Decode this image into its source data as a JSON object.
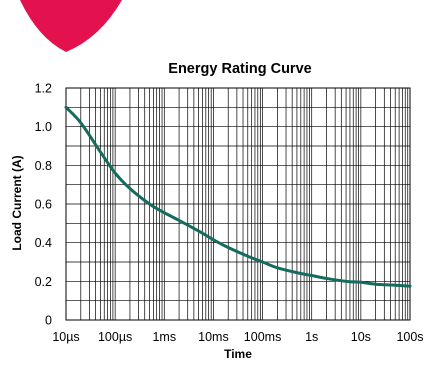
{
  "decor": {
    "logo_color": "#e4114f"
  },
  "chart_data": {
    "type": "line",
    "title": "Energy Rating Curve",
    "xlabel": "Time",
    "ylabel": "Load Current (A)",
    "x_scale": "log",
    "x_unit": "s",
    "xlim": [
      1e-05,
      100
    ],
    "ylim": [
      0,
      1.2
    ],
    "grid": true,
    "legend": "none",
    "x_ticks": [
      {
        "value": 1e-05,
        "label": "10µs"
      },
      {
        "value": 0.0001,
        "label": "100µs"
      },
      {
        "value": 0.001,
        "label": "1ms"
      },
      {
        "value": 0.01,
        "label": "10ms"
      },
      {
        "value": 0.1,
        "label": "100ms"
      },
      {
        "value": 1,
        "label": "1s"
      },
      {
        "value": 10,
        "label": "10s"
      },
      {
        "value": 100,
        "label": "100s"
      }
    ],
    "y_ticks": [
      {
        "value": 0,
        "label": "0"
      },
      {
        "value": 0.2,
        "label": "0.2"
      },
      {
        "value": 0.4,
        "label": "0.4"
      },
      {
        "value": 0.6,
        "label": "0.6"
      },
      {
        "value": 0.8,
        "label": "0.8"
      },
      {
        "value": 1.0,
        "label": "1.0"
      },
      {
        "value": 1.2,
        "label": "1.2"
      }
    ],
    "series": [
      {
        "color": "#146b5e",
        "points": [
          {
            "x": 1e-05,
            "y": 1.1
          },
          {
            "x": 2e-05,
            "y": 1.02
          },
          {
            "x": 5e-05,
            "y": 0.87
          },
          {
            "x": 0.0001,
            "y": 0.76
          },
          {
            "x": 0.0002,
            "y": 0.68
          },
          {
            "x": 0.0005,
            "y": 0.6
          },
          {
            "x": 0.001,
            "y": 0.555
          },
          {
            "x": 0.002,
            "y": 0.515
          },
          {
            "x": 0.005,
            "y": 0.46
          },
          {
            "x": 0.01,
            "y": 0.415
          },
          {
            "x": 0.02,
            "y": 0.375
          },
          {
            "x": 0.05,
            "y": 0.33
          },
          {
            "x": 0.1,
            "y": 0.3
          },
          {
            "x": 0.2,
            "y": 0.27
          },
          {
            "x": 0.5,
            "y": 0.245
          },
          {
            "x": 1,
            "y": 0.23
          },
          {
            "x": 2,
            "y": 0.215
          },
          {
            "x": 5,
            "y": 0.2
          },
          {
            "x": 10,
            "y": 0.195
          },
          {
            "x": 20,
            "y": 0.185
          },
          {
            "x": 50,
            "y": 0.18
          },
          {
            "x": 100,
            "y": 0.175
          }
        ]
      }
    ]
  }
}
